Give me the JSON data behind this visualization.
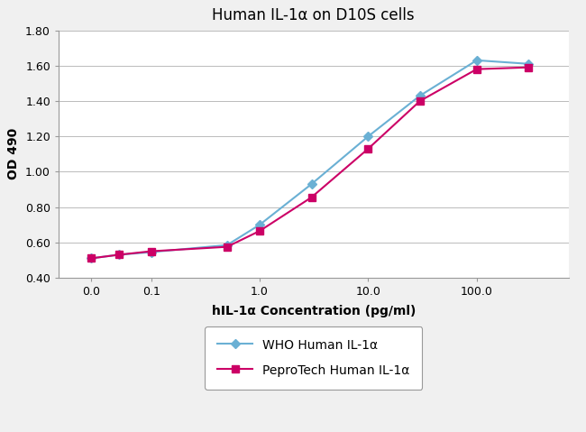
{
  "title": "Human IL-1α on D10S cells",
  "xlabel": "hIL-1α Concentration (pg/ml)",
  "ylabel": "OD 490",
  "who_x": [
    0.0,
    0.05,
    0.1,
    0.5,
    1.0,
    3.0,
    10.0,
    30.0,
    100.0,
    300.0
  ],
  "who_y": [
    0.51,
    0.53,
    0.545,
    0.585,
    0.7,
    0.93,
    1.2,
    1.43,
    1.63,
    1.61
  ],
  "pepro_x": [
    0.0,
    0.05,
    0.1,
    0.5,
    1.0,
    3.0,
    10.0,
    30.0,
    100.0,
    300.0
  ],
  "pepro_y": [
    0.51,
    0.53,
    0.55,
    0.575,
    0.665,
    0.855,
    1.13,
    1.4,
    1.58,
    1.59
  ],
  "who_color": "#6ab0d4",
  "pepro_color": "#cc0066",
  "who_label": "WHO Human IL-1α",
  "pepro_label": "PeproTech Human IL-1α",
  "ylim": [
    0.4,
    1.8
  ],
  "yticks": [
    0.4,
    0.6,
    0.8,
    1.0,
    1.2,
    1.4,
    1.6,
    1.8
  ],
  "xtick_positions": [
    0.028,
    0.1,
    1.0,
    10.0,
    100.0
  ],
  "xtick_labels": [
    "0.0",
    "0.1",
    "1.0",
    "10.0",
    "100.0"
  ],
  "xlim_left": 0.014,
  "xlim_right": 700,
  "eps": 0.028,
  "background_color": "#f0f0f0",
  "plot_bg_color": "#ffffff",
  "grid_color": "#bbbbbb",
  "title_fontsize": 12,
  "axis_label_fontsize": 10,
  "tick_fontsize": 9,
  "legend_fontsize": 10
}
